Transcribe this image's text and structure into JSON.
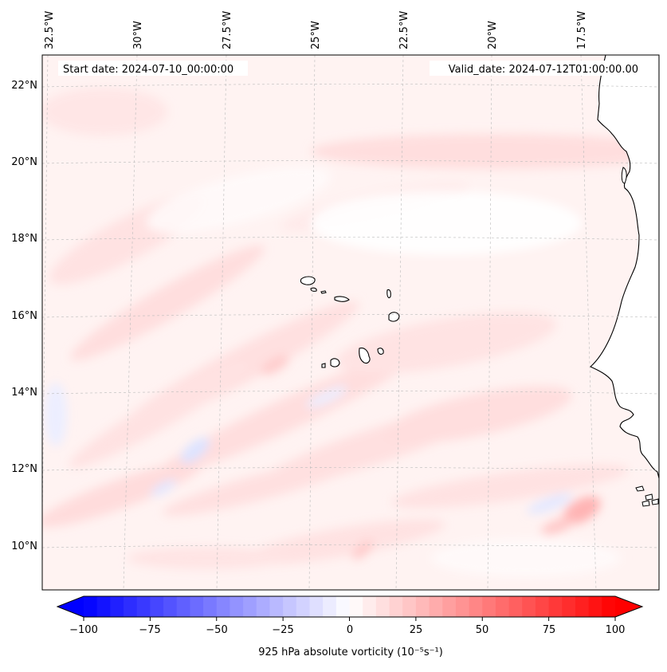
{
  "map": {
    "start_label": "Start date: 2024-07-10_00:00:00",
    "valid_label": "Valid_date: 2024-07-12T01:00:00.00",
    "lon_labels": [
      "32.5°W",
      "30°W",
      "27.5°W",
      "25°W",
      "22.5°W",
      "20°W",
      "17.5°W"
    ],
    "lat_labels": [
      "22°N",
      "20°N",
      "18°N",
      "16°N",
      "14°N",
      "12°N",
      "10°N"
    ],
    "colormap": "bwr",
    "colors": {
      "negative": "#0000ff",
      "zero": "#ffffff",
      "positive": "#ff0000",
      "coastline": "#000000"
    }
  },
  "colorbar": {
    "label": "925 hPa absolute vorticity (10⁻⁵s⁻¹)",
    "ticks": [
      "−100",
      "−75",
      "−50",
      "−25",
      "0",
      "25",
      "50",
      "75",
      "100"
    ],
    "min": -100,
    "max": 100,
    "levels": 40
  }
}
